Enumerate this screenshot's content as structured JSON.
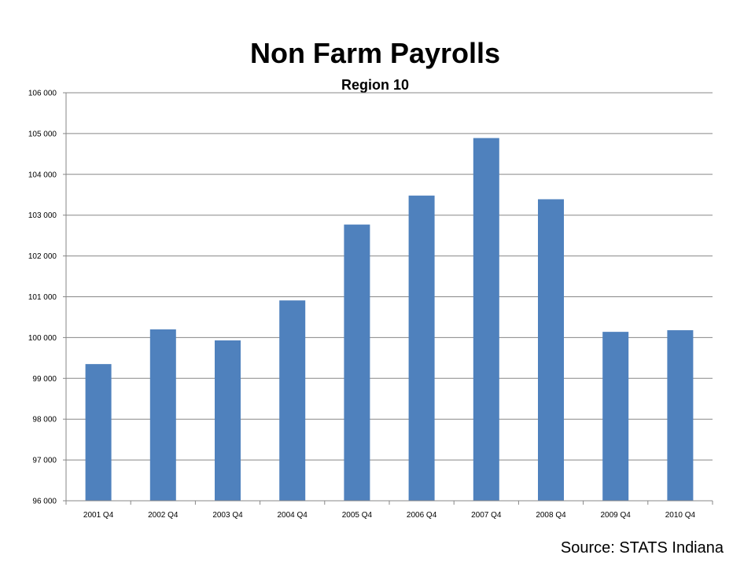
{
  "chart_data": {
    "type": "bar",
    "title": "Non Farm Payrolls",
    "subtitle": "Region 10",
    "categories": [
      "2001 Q4",
      "2002 Q4",
      "2003 Q4",
      "2004 Q4",
      "2005 Q4",
      "2006 Q4",
      "2007 Q4",
      "2008 Q4",
      "2009 Q4",
      "2010 Q4"
    ],
    "values": [
      99350,
      100200,
      99930,
      100910,
      102770,
      103480,
      104890,
      103390,
      100140,
      100180
    ],
    "ylim": [
      96000,
      106000
    ],
    "ytick_step": 1000,
    "ytick_labels": [
      "96 000",
      "97 000",
      "98 000",
      "99 000",
      "100 000",
      "101 000",
      "102 000",
      "103 000",
      "104 000",
      "105 000",
      "106 000"
    ],
    "xlabel": "",
    "ylabel": "",
    "grid": true,
    "legend": "none",
    "bar_color": "#4F81BD",
    "gridline_color": "#878787"
  },
  "footer": {
    "source": "Source:  STATS Indiana"
  }
}
